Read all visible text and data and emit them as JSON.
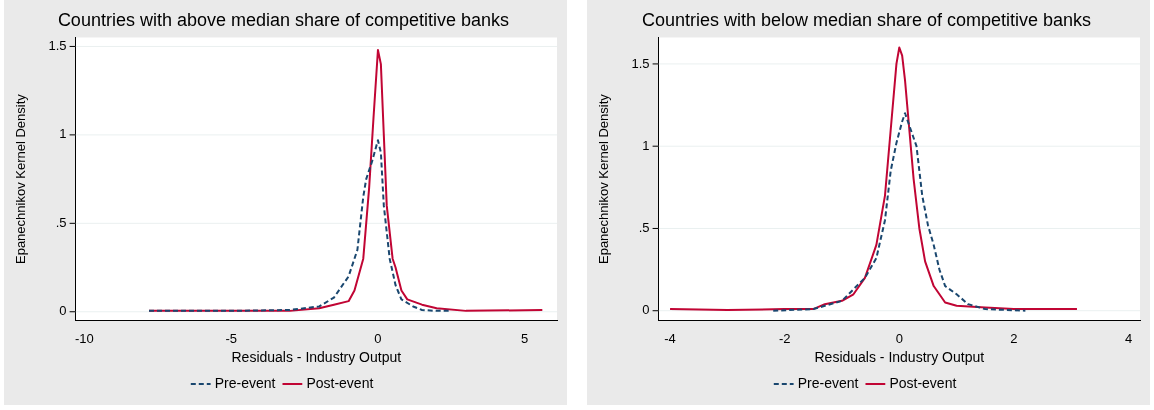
{
  "chart_data": [
    {
      "type": "line",
      "title": "Countries with above median share of competitive banks",
      "xlabel": "Residuals - Industry Output",
      "ylabel": "Epanechnikov Kernel Density",
      "xlim": [
        -10.3,
        6.1
      ],
      "ylim": [
        -0.05,
        1.55
      ],
      "xticks": [
        -10,
        -5,
        0,
        5
      ],
      "yticks": [
        0,
        {
          "value": 0.5,
          "label": ".5"
        },
        1,
        1.5
      ],
      "grid": "y",
      "legend": "bottom",
      "marker": "none",
      "series": [
        {
          "name": "Pre-event",
          "color": "#1a476f",
          "line_style": "dashed",
          "x": [
            -7.8,
            -5,
            -3,
            -2,
            -1.5,
            -1,
            -0.7,
            -0.5,
            -0.4,
            -0.2,
            0,
            0.1,
            0.2,
            0.4,
            0.6,
            0.8,
            1.2,
            1.5,
            2,
            2.5
          ],
          "values": [
            0.005,
            0.005,
            0.01,
            0.03,
            0.08,
            0.2,
            0.35,
            0.65,
            0.75,
            0.85,
            0.97,
            0.9,
            0.6,
            0.3,
            0.15,
            0.07,
            0.03,
            0.01,
            0.005,
            0.005
          ]
        },
        {
          "name": "Post-event",
          "color": "#c10534",
          "line_style": "solid",
          "x": [
            -7.8,
            -5,
            -3,
            -2,
            -1.5,
            -1,
            -0.8,
            -0.5,
            -0.3,
            -0.15,
            0,
            0.1,
            0.2,
            0.3,
            0.5,
            0.6,
            0.8,
            1,
            1.5,
            2,
            3,
            5.6
          ],
          "values": [
            0.005,
            0.005,
            0.005,
            0.02,
            0.04,
            0.06,
            0.12,
            0.3,
            0.7,
            1.1,
            1.48,
            1.4,
            1,
            0.6,
            0.3,
            0.25,
            0.12,
            0.07,
            0.04,
            0.02,
            0.005,
            0.01
          ]
        }
      ]
    },
    {
      "type": "line",
      "title": "Countries with below median share of competitive banks",
      "xlabel": "Residuals - Industry Output",
      "ylabel": "Epanechnikov Kernel Density",
      "xlim": [
        -4.2,
        4.2
      ],
      "ylim": [
        -0.06,
        1.66
      ],
      "xticks": [
        -4,
        -2,
        0,
        2,
        4
      ],
      "yticks": [
        0,
        {
          "value": 0.5,
          "label": ".5"
        },
        1,
        1.5
      ],
      "grid": "y",
      "legend": "bottom",
      "marker": "none",
      "series": [
        {
          "name": "Pre-event",
          "color": "#1a476f",
          "line_style": "dashed",
          "x": [
            -2.2,
            -1.5,
            -1,
            -0.6,
            -0.4,
            -0.25,
            -0.15,
            -0.05,
            0.05,
            0.1,
            0.2,
            0.3,
            0.4,
            0.5,
            0.6,
            0.7,
            0.8,
            1,
            1.2,
            1.5,
            2.2
          ],
          "values": [
            0,
            0.01,
            0.06,
            0.2,
            0.32,
            0.55,
            0.85,
            1.02,
            1.15,
            1.2,
            1.1,
            1,
            0.7,
            0.52,
            0.4,
            0.25,
            0.15,
            0.1,
            0.04,
            0.01,
            0
          ]
        },
        {
          "name": "Post-event",
          "color": "#c10534",
          "line_style": "solid",
          "x": [
            -4,
            -3,
            -2,
            -1.5,
            -1.3,
            -1,
            -0.8,
            -0.6,
            -0.4,
            -0.25,
            -0.15,
            -0.05,
            0,
            0.05,
            0.1,
            0.15,
            0.25,
            0.35,
            0.45,
            0.6,
            0.8,
            1,
            1.5,
            2,
            3.1
          ],
          "values": [
            0.01,
            0.005,
            0.01,
            0.01,
            0.04,
            0.06,
            0.1,
            0.2,
            0.4,
            0.7,
            1.1,
            1.5,
            1.6,
            1.55,
            1.4,
            1.2,
            0.8,
            0.5,
            0.3,
            0.15,
            0.05,
            0.03,
            0.02,
            0.01,
            0.01
          ]
        }
      ]
    }
  ]
}
